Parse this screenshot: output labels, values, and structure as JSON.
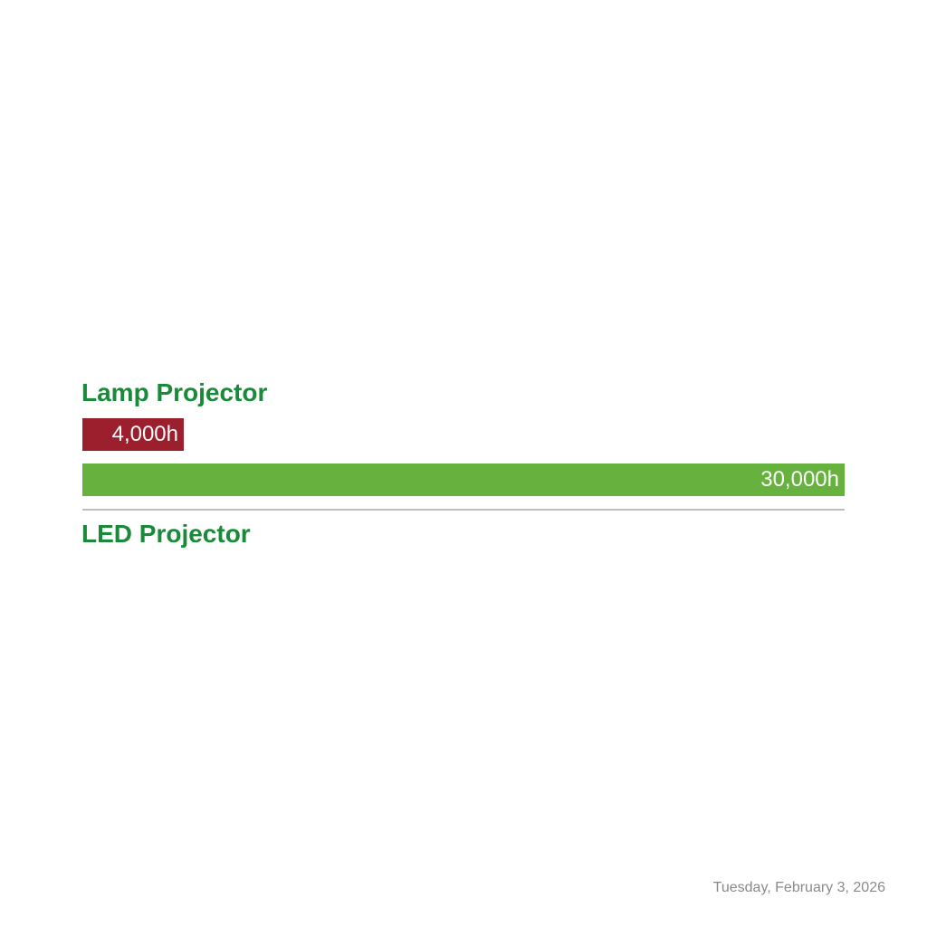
{
  "chart_data": {
    "type": "bar",
    "orientation": "horizontal",
    "categories": [
      "Lamp Projector",
      "LED Projector"
    ],
    "values": [
      4000,
      30000
    ],
    "value_labels": [
      "4,000h",
      "30,000h"
    ],
    "colors": [
      "#9b1f2c",
      "#67b23f"
    ],
    "label_color": "#1a8a3a",
    "xlim": [
      0,
      30000
    ],
    "grid": false,
    "legend": "none"
  },
  "footer": {
    "date": "Tuesday, February 3, 2026"
  }
}
